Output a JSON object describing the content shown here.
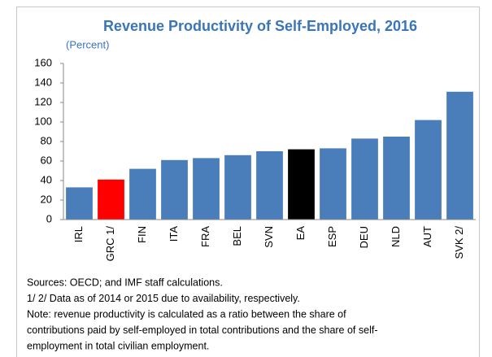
{
  "chart_data": {
    "type": "bar",
    "title": "Revenue Productivity of Self-Employed, 2016",
    "subtitle": "(Percent)",
    "categories": [
      "IRL",
      "GRC 1/",
      "FIN",
      "ITA",
      "FRA",
      "BEL",
      "SVN",
      "EA",
      "ESP",
      "DEU",
      "NLD",
      "AUT",
      "SVK 2/"
    ],
    "values": [
      33,
      41,
      52,
      61,
      63,
      66,
      70,
      72,
      73,
      83,
      85,
      102,
      131
    ],
    "colors": [
      "#4a7ebb",
      "#ff0000",
      "#4a7ebb",
      "#4a7ebb",
      "#4a7ebb",
      "#4a7ebb",
      "#4a7ebb",
      "#000000",
      "#4a7ebb",
      "#4a7ebb",
      "#4a7ebb",
      "#4a7ebb",
      "#4a7ebb"
    ],
    "ylim": [
      0,
      160
    ],
    "yticks": [
      0,
      20,
      40,
      60,
      80,
      100,
      120,
      140,
      160
    ],
    "grid": false,
    "notes": [
      "Sources: OECD; and IMF staff calculations.",
      "1/ 2/ Data as of 2014 or 2015 due to availability, respectively.",
      "Note: revenue productivity is calculated as a ratio between the share of",
      "contributions paid by self-employed in total contributions and the share of self-",
      "employment in total civilian employment."
    ]
  }
}
